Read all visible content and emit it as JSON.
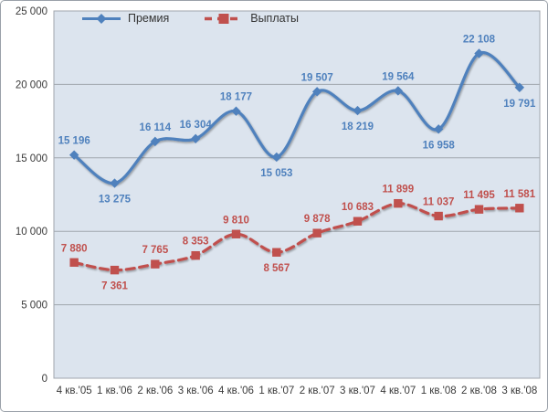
{
  "frame": {
    "background": "#ffffff",
    "border_color": "#9aa1a9"
  },
  "legend": {
    "position": "top-inside",
    "items": [
      {
        "label": "Премия",
        "marker": "diamond",
        "line_style": "solid"
      },
      {
        "label": "Выплаты",
        "marker": "square",
        "line_style": "dashed"
      }
    ]
  },
  "chart_data": {
    "type": "line",
    "smooth": true,
    "grid": "horizontal-only",
    "legend_position": "top-inside",
    "plot_background": "#dce4ee",
    "gridline_color": "#a0a6ad",
    "axis_text_color": "#3a3a3a",
    "categories": [
      "4 кв.'05",
      "1 кв.'06",
      "2 кв.'06",
      "3 кв.'06",
      "4 кв.'06",
      "1 кв.'07",
      "2 кв.'07",
      "3 кв.'07",
      "4 кв.'07",
      "1 кв.'08",
      "2 кв.'08",
      "3 кв.'08"
    ],
    "ylim": [
      0,
      25000
    ],
    "ytick_step": 5000,
    "ytick_labels": [
      "0",
      "5 000",
      "10 000",
      "15 000",
      "20 000",
      "25 000"
    ],
    "series": [
      {
        "name": "Премия",
        "color": "#4F81BD",
        "marker": "diamond",
        "line_style": "solid",
        "values": [
          15196,
          13275,
          16114,
          16304,
          18177,
          15053,
          19507,
          18219,
          19564,
          16958,
          22108,
          19791
        ],
        "labels": [
          "15 196",
          "13 275",
          "16 114",
          "16 304",
          "18 177",
          "15 053",
          "19 507",
          "18 219",
          "19 564",
          "16 958",
          "22 108",
          "19 791"
        ],
        "label_sides": [
          "above",
          "below",
          "above",
          "above",
          "above",
          "below",
          "above",
          "below",
          "above",
          "below",
          "above",
          "below"
        ]
      },
      {
        "name": "Выплаты",
        "color": "#C0504D",
        "marker": "square",
        "line_style": "dashed",
        "values": [
          7880,
          7361,
          7765,
          8353,
          9810,
          8567,
          9878,
          10683,
          11899,
          11037,
          11495,
          11581
        ],
        "labels": [
          "7 880",
          "7 361",
          "7 765",
          "8 353",
          "9 810",
          "8 567",
          "9 878",
          "10 683",
          "11 899",
          "11 037",
          "11 495",
          "11 581"
        ],
        "label_sides": [
          "above",
          "below",
          "above",
          "above",
          "above",
          "below",
          "above",
          "above",
          "above",
          "above",
          "above",
          "above"
        ]
      }
    ]
  }
}
